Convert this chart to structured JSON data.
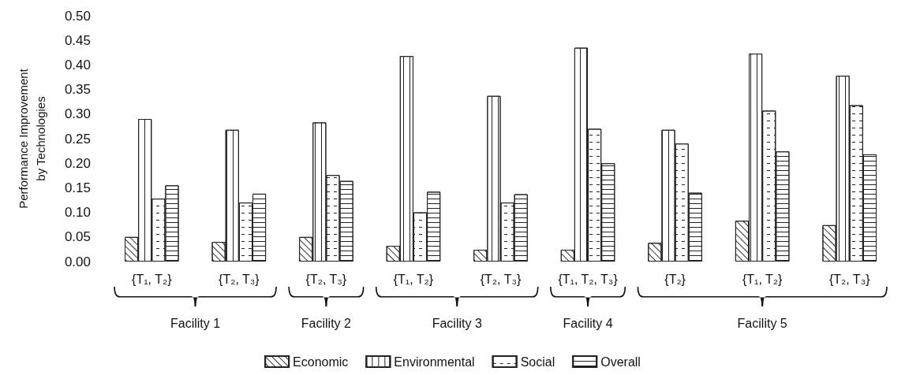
{
  "chart_data": {
    "type": "bar",
    "ylabel": "Performance Improvement\nby Technologies",
    "categories": [
      "{T₁, T₂}",
      "{T₂, T₃}",
      "{T₂, T₃}",
      "{T₁, T₂}",
      "{T₂, T₃}",
      "{T₁, T₂, T₃}",
      "{T₂}",
      "{T₁, T₂}",
      "{T₂, T₃}"
    ],
    "series": [
      {
        "name": "Economic",
        "color": "#ffffff",
        "values": [
          0.05,
          0.04,
          0.05,
          0.032,
          0.024,
          0.024,
          0.038,
          0.083,
          0.074
        ]
      },
      {
        "name": "Environmental",
        "color": "#ffffff",
        "values": [
          0.29,
          0.268,
          0.283,
          0.418,
          0.337,
          0.435,
          0.268,
          0.423,
          0.378
        ]
      },
      {
        "name": "Social",
        "color": "#ffffff",
        "values": [
          0.128,
          0.12,
          0.176,
          0.1,
          0.12,
          0.27,
          0.24,
          0.307,
          0.318
        ]
      },
      {
        "name": "Overall",
        "color": "#ffffff",
        "values": [
          0.155,
          0.138,
          0.164,
          0.142,
          0.137,
          0.2,
          0.14,
          0.224,
          0.218
        ]
      }
    ],
    "ylim": [
      0,
      0.5
    ],
    "yticks": [
      {
        "value": 0,
        "label": "0.00"
      },
      {
        "value": 0.05,
        "label": "0.05"
      },
      {
        "value": 0.1,
        "label": "0.10"
      },
      {
        "value": 0.15,
        "label": "0.15"
      },
      {
        "value": 0.2,
        "label": "0.20"
      },
      {
        "value": 0.25,
        "label": "0.25"
      },
      {
        "value": 0.3,
        "label": "0.30"
      },
      {
        "value": 0.35,
        "label": "0.35"
      },
      {
        "value": 0.4,
        "label": "0.40"
      },
      {
        "value": 0.45,
        "label": "0.45"
      },
      {
        "value": 0.5,
        "label": "0.50"
      }
    ],
    "grid": false,
    "legend": "bottom",
    "annotations": [
      "Facility 1",
      "Facility 2",
      "Facility 3",
      "Facility 4",
      "Facility 5"
    ]
  }
}
